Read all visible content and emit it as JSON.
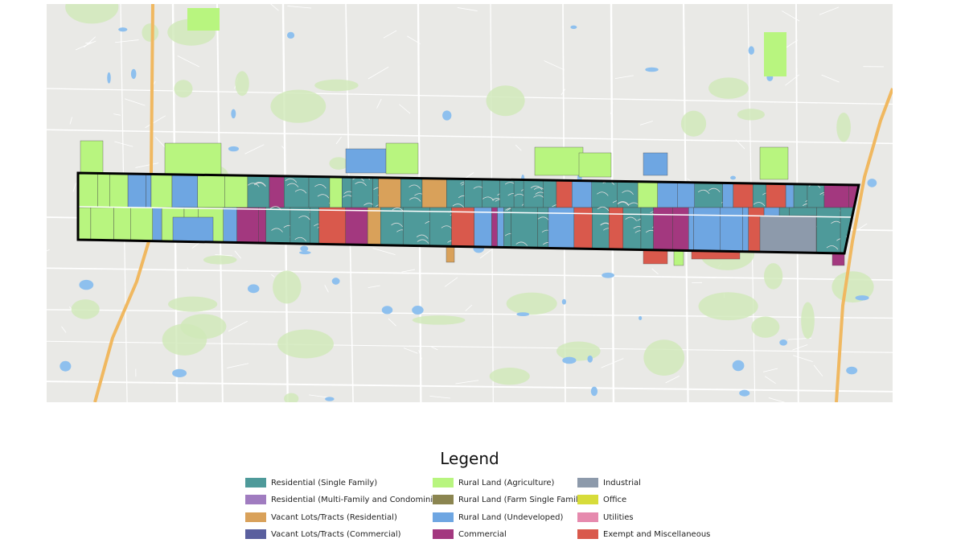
{
  "legend": {
    "title": "Legend",
    "items": [
      {
        "label": "Residential (Single Family)",
        "color": "#4e9a9a"
      },
      {
        "label": "Residential (Multi-Family and Condominium)",
        "color": "#a07cc0"
      },
      {
        "label": "Vacant Lots/Tracts (Residential)",
        "color": "#d9a15a"
      },
      {
        "label": "Vacant Lots/Tracts (Commercial)",
        "color": "#5a5f9e"
      },
      {
        "label": "Rural Land (Agriculture)",
        "color": "#b8f57f"
      },
      {
        "label": "Rural Land (Farm Single Family)",
        "color": "#8b8550"
      },
      {
        "label": "Rural Land (Undeveloped)",
        "color": "#6ea6e2"
      },
      {
        "label": "Commercial",
        "color": "#a3387f"
      },
      {
        "label": "Industrial",
        "color": "#8d9aab"
      },
      {
        "label": "Office",
        "color": "#d7dc3a"
      },
      {
        "label": "Utilities",
        "color": "#e68aae"
      },
      {
        "label": "Exempt and Miscellaneous",
        "color": "#d9594c"
      }
    ]
  }
}
